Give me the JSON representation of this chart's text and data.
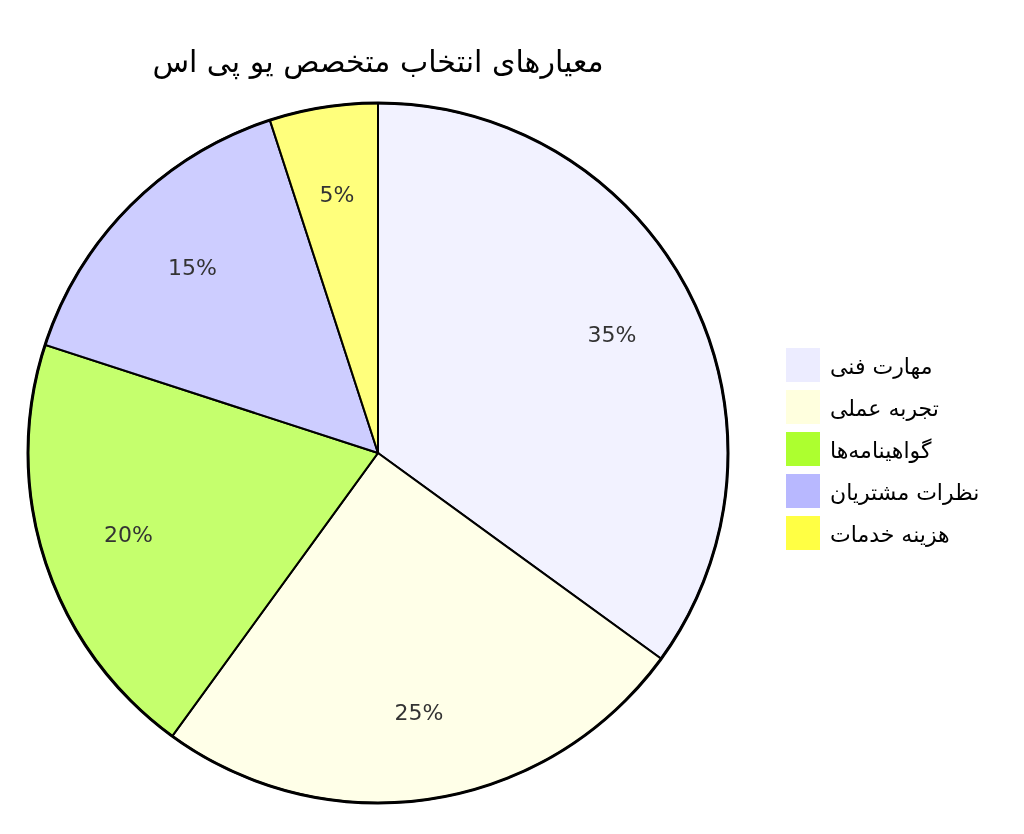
{
  "chart_data": {
    "type": "pie",
    "title": "معیارهای انتخاب متخصص یو پی اس",
    "categories": [
      "مهارت فنی",
      "تجربه عملی",
      "گواهینامه‌ها",
      "نظرات مشتریان",
      "هزینه خدمات"
    ],
    "values": [
      35,
      25,
      20,
      15,
      5
    ],
    "colors": [
      "#ececff",
      "#ffffde",
      "#adff2f",
      "#b8b8ff",
      "#ffff44"
    ],
    "value_labels": [
      "35%",
      "25%",
      "20%",
      "15%",
      "5%"
    ],
    "legend": "right"
  }
}
